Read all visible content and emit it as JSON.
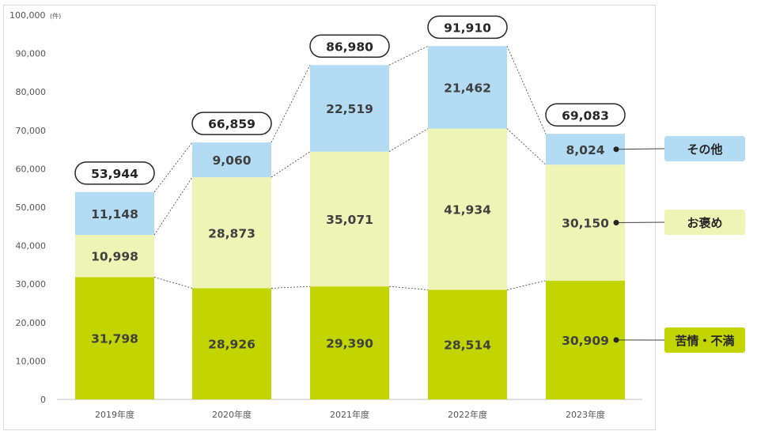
{
  "chart_data": {
    "type": "bar",
    "stacked": true,
    "title": "",
    "y_unit_label": "100,000",
    "y_unit_suffix": "(件)",
    "ylim": [
      0,
      100000
    ],
    "y_ticks": [
      "0",
      "10,000",
      "20,000",
      "30,000",
      "40,000",
      "50,000",
      "60,000",
      "70,000",
      "80,000",
      "90,000"
    ],
    "categories": [
      "2019年度",
      "2020年度",
      "2021年度",
      "2022年度",
      "2023年度"
    ],
    "series": [
      {
        "name": "苦情・不満",
        "color": "#c2d500",
        "values": [
          31798,
          28926,
          29390,
          28514,
          30909
        ],
        "labels": [
          "31,798",
          "28,926",
          "29,390",
          "28,514",
          "30,909"
        ]
      },
      {
        "name": "お褒め",
        "color": "#eef4b6",
        "values": [
          10998,
          28873,
          35071,
          41934,
          30150
        ],
        "labels": [
          "10,998",
          "28,873",
          "35,071",
          "41,934",
          "30,150"
        ]
      },
      {
        "name": "その他",
        "color": "#b3dcf4",
        "values": [
          11148,
          9060,
          22519,
          21462,
          8024
        ],
        "labels": [
          "11,148",
          "9,060",
          "22,519",
          "21,462",
          "8,024"
        ]
      }
    ],
    "totals": [
      53944,
      66859,
      86980,
      91910,
      69083
    ],
    "total_labels": [
      "53,944",
      "66,859",
      "86,980",
      "91,910",
      "69,083"
    ],
    "grid": false,
    "legend_position": "right"
  },
  "legend": {
    "other": {
      "label": "その他",
      "color": "#b3dcf4"
    },
    "praise": {
      "label": "お褒め",
      "color": "#eef4b6"
    },
    "complaint": {
      "label": "苦情・不満",
      "color": "#c2d500"
    }
  }
}
